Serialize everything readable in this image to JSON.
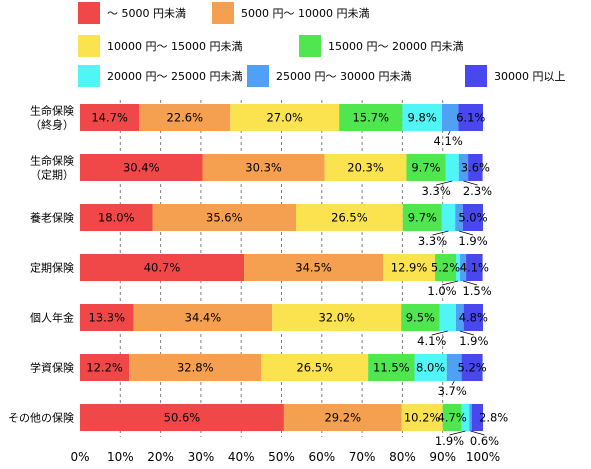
{
  "chart_data": {
    "type": "bar",
    "orientation": "horizontal",
    "stacked": true,
    "percent": true,
    "categories": [
      [
        "生命保険",
        "（終身）"
      ],
      [
        "生命保険",
        "（定期）"
      ],
      [
        "養老保険"
      ],
      [
        "定期保険"
      ],
      [
        "個人年金"
      ],
      [
        "学資保険"
      ],
      [
        "その他の保険"
      ]
    ],
    "series": [
      {
        "name": "～ 5000 円未満",
        "color": "#f04848",
        "values": [
          14.7,
          30.4,
          18.0,
          40.7,
          13.3,
          12.2,
          50.6
        ]
      },
      {
        "name": "5000 円～ 10000 円未満",
        "color": "#f5a050",
        "values": [
          22.6,
          30.3,
          35.6,
          34.5,
          34.4,
          32.8,
          29.2
        ]
      },
      {
        "name": "10000 円～ 15000 円未満",
        "color": "#fbe350",
        "values": [
          27.0,
          20.3,
          26.5,
          12.9,
          32.0,
          26.5,
          10.2
        ]
      },
      {
        "name": "15000 円～ 20000 円未満",
        "color": "#50e650",
        "values": [
          15.7,
          9.7,
          9.7,
          5.2,
          9.5,
          11.5,
          4.7
        ]
      },
      {
        "name": "20000 円～ 25000 円未満",
        "color": "#50f5f5",
        "values": [
          9.8,
          3.3,
          3.3,
          1.0,
          4.1,
          8.0,
          1.9
        ]
      },
      {
        "name": "25000 円～ 30000 円未満",
        "color": "#50a0f5",
        "values": [
          4.1,
          2.3,
          1.9,
          1.5,
          1.9,
          3.7,
          0.6
        ]
      },
      {
        "name": "30000 円以上",
        "color": "#4848ee",
        "values": [
          6.1,
          3.6,
          5.0,
          4.1,
          4.8,
          5.2,
          2.8
        ]
      }
    ],
    "data_labels": [
      [
        {
          "text": "14.7%",
          "series": 0,
          "pos": "inside"
        },
        {
          "text": "22.6%",
          "series": 1,
          "pos": "inside"
        },
        {
          "text": "27.0%",
          "series": 2,
          "pos": "inside"
        },
        {
          "text": "15.7%",
          "series": 3,
          "pos": "inside"
        },
        {
          "text": "9.8%",
          "series": 4,
          "pos": "inside"
        },
        {
          "text": "4.1%",
          "series": 5,
          "pos": "below"
        },
        {
          "text": "6.1%",
          "series": 6,
          "pos": "inside"
        }
      ],
      [
        {
          "text": "30.4%",
          "series": 0,
          "pos": "inside"
        },
        {
          "text": "30.3%",
          "series": 1,
          "pos": "inside"
        },
        {
          "text": "20.3%",
          "series": 2,
          "pos": "inside"
        },
        {
          "text": "9.7%",
          "series": 3,
          "pos": "inside"
        },
        {
          "text": "3.3%",
          "series": 4,
          "pos": "below-left"
        },
        {
          "text": "2.3%",
          "series": 5,
          "pos": "below-right"
        },
        {
          "text": "3.6%",
          "series": 6,
          "pos": "inside"
        }
      ],
      [
        {
          "text": "18.0%",
          "series": 0,
          "pos": "inside"
        },
        {
          "text": "35.6%",
          "series": 1,
          "pos": "inside"
        },
        {
          "text": "26.5%",
          "series": 2,
          "pos": "inside"
        },
        {
          "text": "9.7%",
          "series": 3,
          "pos": "inside"
        },
        {
          "text": "3.3%",
          "series": 4,
          "pos": "below-left"
        },
        {
          "text": "1.9%",
          "series": 5,
          "pos": "below-right"
        },
        {
          "text": "5.0%",
          "series": 6,
          "pos": "inside"
        }
      ],
      [
        {
          "text": "40.7%",
          "series": 0,
          "pos": "inside"
        },
        {
          "text": "34.5%",
          "series": 1,
          "pos": "inside"
        },
        {
          "text": "12.9%",
          "series": 2,
          "pos": "inside"
        },
        {
          "text": "5.2%",
          "series": 3,
          "pos": "inside"
        },
        {
          "text": "1.0%",
          "series": 4,
          "pos": "below-left"
        },
        {
          "text": "1.5%",
          "series": 5,
          "pos": "below-right"
        },
        {
          "text": "4.1%",
          "series": 6,
          "pos": "inside"
        }
      ],
      [
        {
          "text": "13.3%",
          "series": 0,
          "pos": "inside"
        },
        {
          "text": "34.4%",
          "series": 1,
          "pos": "inside"
        },
        {
          "text": "32.0%",
          "series": 2,
          "pos": "inside"
        },
        {
          "text": "9.5%",
          "series": 3,
          "pos": "inside"
        },
        {
          "text": "4.1%",
          "series": 4,
          "pos": "below-left"
        },
        {
          "text": "1.9%",
          "series": 5,
          "pos": "below-right"
        },
        {
          "text": "4.8%",
          "series": 6,
          "pos": "inside"
        }
      ],
      [
        {
          "text": "12.2%",
          "series": 0,
          "pos": "inside"
        },
        {
          "text": "32.8%",
          "series": 1,
          "pos": "inside"
        },
        {
          "text": "26.5%",
          "series": 2,
          "pos": "inside"
        },
        {
          "text": "11.5%",
          "series": 3,
          "pos": "inside"
        },
        {
          "text": "8.0%",
          "series": 4,
          "pos": "inside"
        },
        {
          "text": "3.7%",
          "series": 5,
          "pos": "below"
        },
        {
          "text": "5.2%",
          "series": 6,
          "pos": "inside"
        }
      ],
      [
        {
          "text": "50.6%",
          "series": 0,
          "pos": "inside"
        },
        {
          "text": "29.2%",
          "series": 1,
          "pos": "inside"
        },
        {
          "text": "10.2%",
          "series": 2,
          "pos": "inside"
        },
        {
          "text": "4.7%",
          "series": 3,
          "pos": "inside"
        },
        {
          "text": "1.9%",
          "series": 4,
          "pos": "below-left"
        },
        {
          "text": "0.6%",
          "series": 5,
          "pos": "below-right"
        },
        {
          "text": "2.8%",
          "series": 6,
          "pos": "inside-right"
        }
      ]
    ],
    "xlim": [
      0,
      100
    ],
    "xticks": [
      "0%",
      "10%",
      "20%",
      "30%",
      "40%",
      "50%",
      "60%",
      "70%",
      "80%",
      "90%",
      "100%"
    ],
    "grid": "vertical-dashed",
    "legend": "top"
  }
}
